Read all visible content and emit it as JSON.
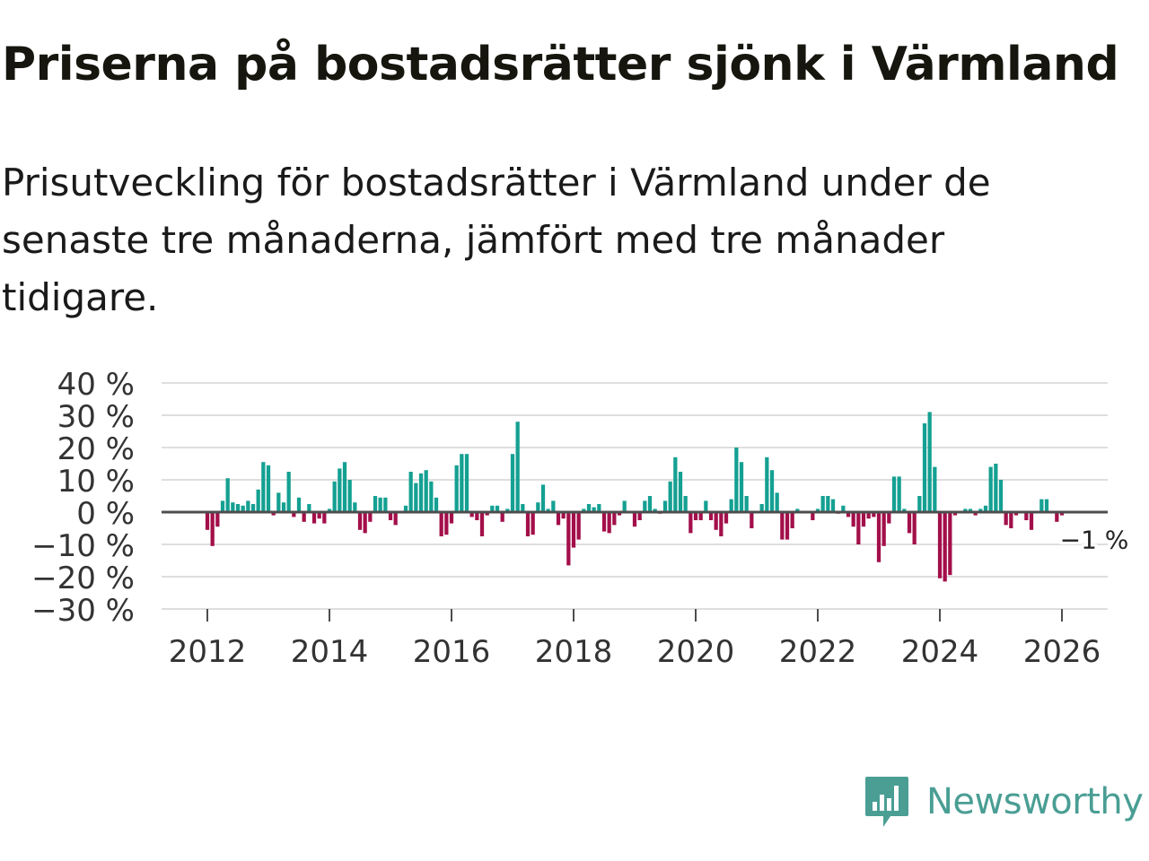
{
  "title": "Priserna på bostadsrätter sjönk i Värmland",
  "subtitle": "Prisutveckling för bostadsrätter i Värmland under de senaste tre månaderna, jämfört med tre månader tidigare.",
  "brand": {
    "name": "Newsworthy",
    "icon": "newsworthy-logo-icon"
  },
  "colors": {
    "positive": "#14a092",
    "negative": "#a30f4a",
    "grid": "#dedede",
    "zero": "#4d4d4d",
    "text": "#333333"
  },
  "chart_data": {
    "type": "bar",
    "title": "",
    "xlabel": "",
    "ylabel": "",
    "ylim": [
      -30,
      40
    ],
    "yticks": [
      40,
      30,
      20,
      10,
      0,
      -10,
      -20,
      -30
    ],
    "ytick_labels": [
      "40 %",
      "30 %",
      "20 %",
      "10 %",
      "0 %",
      "−10 %",
      "−20 %",
      "−30 %"
    ],
    "xlim": [
      2011.25,
      2026.75
    ],
    "xticks": [
      2012,
      2014,
      2016,
      2018,
      2020,
      2022,
      2024,
      2026
    ],
    "xtick_labels": [
      "2012",
      "2014",
      "2016",
      "2018",
      "2020",
      "2022",
      "2024",
      "2026"
    ],
    "start": [
      2012,
      1
    ],
    "values": [
      -5.5,
      -10.5,
      -4.5,
      3.5,
      10.5,
      3,
      2.5,
      2,
      3.5,
      2.5,
      7,
      15.5,
      14.5,
      -1,
      6,
      3,
      12.5,
      -1.5,
      4.5,
      -3,
      2.5,
      -3.5,
      -2,
      -3.5,
      1,
      9.5,
      13.5,
      15.5,
      10,
      3,
      -5.5,
      -6.5,
      -3,
      5,
      4.5,
      4.5,
      -2.5,
      -4,
      0,
      2,
      12.5,
      9,
      12,
      13,
      9.5,
      4.5,
      -7.5,
      -7,
      -3.5,
      14.5,
      18,
      18,
      -1.5,
      -2.5,
      -7.5,
      -1,
      2,
      2,
      -3,
      1,
      18,
      28,
      2.5,
      -7.5,
      -7,
      3,
      8.5,
      1,
      3.5,
      -4,
      -2,
      -16.5,
      -11,
      -8.5,
      1,
      2.5,
      1.5,
      2.5,
      -6,
      -6.5,
      -4,
      -1,
      3.5,
      0,
      -4.5,
      -2.5,
      3.5,
      5,
      1,
      -0.5,
      3.5,
      9.5,
      17,
      12.5,
      5,
      -6.5,
      -2.5,
      -2.5,
      3.5,
      -2.5,
      -5.5,
      -7.5,
      -3.5,
      4,
      20,
      15.5,
      5,
      -5,
      0,
      2.5,
      17,
      13,
      6,
      -8.5,
      -8.5,
      -5,
      1,
      0,
      0,
      -2.5,
      1,
      5,
      5,
      4,
      -0.5,
      2,
      -1.5,
      -4.5,
      -10,
      -4.5,
      -2,
      -1.5,
      -15.5,
      -10.5,
      -3.5,
      11,
      11,
      1,
      -6.5,
      -10,
      5,
      27.5,
      31,
      14,
      -20.5,
      -21.5,
      -19.5,
      -1,
      0,
      1,
      1,
      -1,
      1,
      2,
      14,
      15,
      10,
      -4,
      -5,
      -1,
      0,
      -2.5,
      -5.5,
      0,
      4,
      4,
      0,
      -3,
      -1
    ],
    "annotations": [
      {
        "x": "latest",
        "text": "−1 %"
      }
    ]
  }
}
